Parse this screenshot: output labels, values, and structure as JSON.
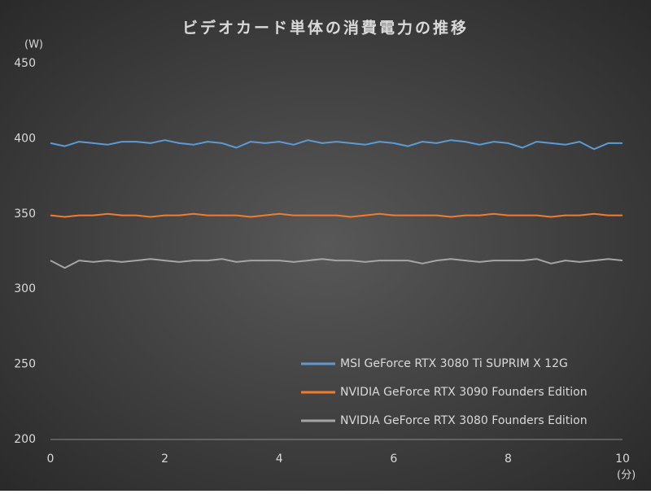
{
  "chart_data": {
    "type": "line",
    "title": "ビデオカード単体の消費電力の推移",
    "y_label": "(W)",
    "x_label": "(分)",
    "x": [
      0,
      0.25,
      0.5,
      0.75,
      1,
      1.25,
      1.5,
      1.75,
      2,
      2.25,
      2.5,
      2.75,
      3,
      3.25,
      3.5,
      3.75,
      4,
      4.25,
      4.5,
      4.75,
      5,
      5.25,
      5.5,
      5.75,
      6,
      6.25,
      6.5,
      6.75,
      7,
      7.25,
      7.5,
      7.75,
      8,
      8.25,
      8.5,
      8.75,
      9,
      9.25,
      9.5,
      9.75,
      10
    ],
    "series": [
      {
        "name": "MSI GeForce RTX 3080 Ti SUPRIM X 12G",
        "color": "#5b9bd5",
        "values": [
          397,
          395,
          398,
          397,
          396,
          398,
          398,
          397,
          399,
          397,
          396,
          398,
          397,
          394,
          398,
          397,
          398,
          396,
          399,
          397,
          398,
          397,
          396,
          398,
          397,
          395,
          398,
          397,
          399,
          398,
          396,
          398,
          397,
          394,
          398,
          397,
          396,
          398,
          393,
          397,
          397
        ]
      },
      {
        "name": "NVIDIA GeForce RTX 3090 Founders Edition",
        "color": "#ed7d31",
        "values": [
          349,
          348,
          349,
          349,
          350,
          349,
          349,
          348,
          349,
          349,
          350,
          349,
          349,
          349,
          348,
          349,
          350,
          349,
          349,
          349,
          349,
          348,
          349,
          350,
          349,
          349,
          349,
          349,
          348,
          349,
          349,
          350,
          349,
          349,
          349,
          348,
          349,
          349,
          350,
          349,
          349
        ]
      },
      {
        "name": "NVIDIA GeForce RTX 3080 Founders Edition",
        "color": "#a5a5a5",
        "values": [
          319,
          314,
          319,
          318,
          319,
          318,
          319,
          320,
          319,
          318,
          319,
          319,
          320,
          318,
          319,
          319,
          319,
          318,
          319,
          320,
          319,
          319,
          318,
          319,
          319,
          319,
          317,
          319,
          320,
          319,
          318,
          319,
          319,
          319,
          320,
          317,
          319,
          318,
          319,
          320,
          319
        ]
      }
    ],
    "xlim": [
      0,
      10
    ],
    "xticks": [
      0,
      2,
      4,
      6,
      8,
      10
    ],
    "ylim": [
      200,
      450
    ],
    "yticks": [
      200,
      250,
      300,
      350,
      400,
      450
    ],
    "legend": "lower right"
  }
}
